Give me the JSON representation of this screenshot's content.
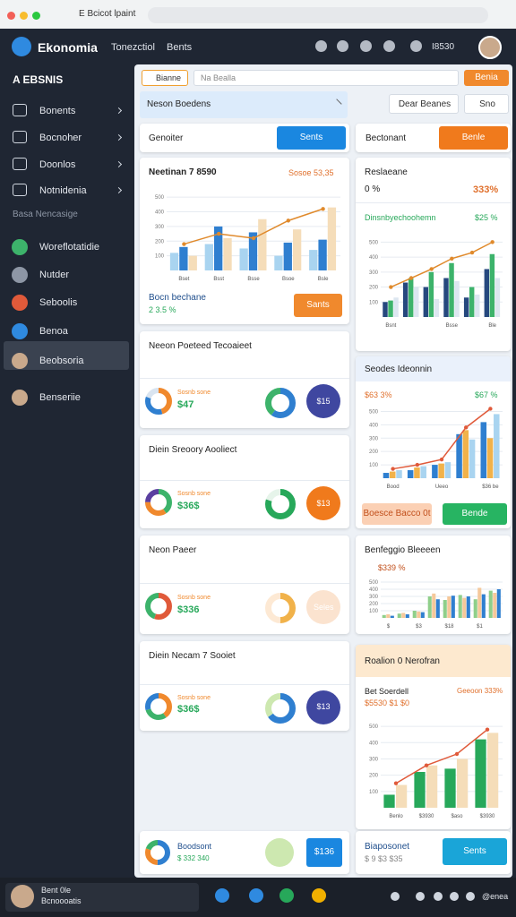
{
  "browser": {
    "tab_title": "E Bcicot lpaint"
  },
  "header": {
    "app_name": "Ekonomia",
    "nav": [
      "Tonezctiol",
      "Bents"
    ],
    "account": "I8530"
  },
  "sidebar": {
    "title": "A EBSNIS",
    "items": [
      "Bonents",
      "Bocnoher",
      "Doonlos",
      "Notnidenia"
    ],
    "section": "Basa Nencasige",
    "items2": [
      "Woreflotatidie",
      "Nutder",
      "Seboolis",
      "Benoa",
      "Beobsoria",
      "Benseriie"
    ]
  },
  "toolbar": {
    "filter": "Bianne",
    "search": "Na Bealla",
    "button": "Benia"
  },
  "notice": {
    "text": "Neson Boedens",
    "buttons": [
      "Dear Beanes",
      "Sno"
    ]
  },
  "search": {
    "placeholder": "Genoiter",
    "button": "Sents",
    "placeholder2": "Bectonant",
    "button2": "Benle"
  },
  "main_card": {
    "title": "Neetinan 7 8590",
    "figure": "Sosoe 53,35",
    "label": "Bocn bechane",
    "change": "2 3.5 %",
    "button": "Sants",
    "chart": {
      "type": "bar",
      "categories": [
        "Bset",
        "Bsst",
        "Bsse",
        "Bsoe",
        "Bsle"
      ],
      "ylim": [
        0,
        550
      ],
      "yticks": [
        100,
        200,
        300,
        400,
        500
      ],
      "series": [
        {
          "color": "#a9d4f0",
          "values": [
            120,
            180,
            150,
            100,
            140
          ]
        },
        {
          "color": "#2f7fd0",
          "values": [
            160,
            300,
            260,
            190,
            210
          ]
        },
        {
          "color": "#f5ddb9",
          "values": [
            100,
            220,
            350,
            280,
            430
          ]
        },
        {
          "color": "#e08a2c",
          "style": "line",
          "values": [
            180,
            250,
            220,
            340,
            420
          ]
        }
      ]
    }
  },
  "small_cards": [
    {
      "title": "Neeon Poeteed Tecoaieet",
      "value": "$47",
      "caption": "Sosnb sone",
      "badge": "$15",
      "shares": [
        45,
        35,
        20
      ],
      "colors": [
        "#f0892d",
        "#2f7fd0",
        "#d9e4f0"
      ],
      "shares2": [
        60,
        40
      ],
      "colors2": [
        "#2f7fd0",
        "#3db36b"
      ],
      "circle_color": "#3f47a0"
    },
    {
      "title": "Diein Sreoory Aooliect",
      "value": "$36$",
      "caption": "Sosnb sone",
      "badge": "$13",
      "shares": [
        40,
        35,
        25
      ],
      "colors": [
        "#3db36b",
        "#f0892d",
        "#5a3fa0"
      ],
      "shares2": [
        80,
        20
      ],
      "colors2": [
        "#27a85a",
        "#e6f4ea"
      ],
      "circle_color": "#f07a1c"
    },
    {
      "title": "Neon Paeer",
      "value": "$336",
      "caption": "Sosnb sone",
      "badge": "Seles",
      "shares": [
        55,
        45
      ],
      "colors": [
        "#e05a3a",
        "#3db36b"
      ],
      "shares2": [
        50,
        50
      ],
      "colors2": [
        "#f1b24a",
        "#fde9d4"
      ],
      "circle_color": "#fbe3cf"
    },
    {
      "title": "Diein Necam 7 Sooiet",
      "value": "$36$",
      "caption": "Sosnb sone",
      "badge": "$13",
      "shares": [
        40,
        30,
        30
      ],
      "colors": [
        "#f0892d",
        "#3db36b",
        "#2f7fd0"
      ],
      "shares2": [
        65,
        35
      ],
      "colors2": [
        "#2f7fd0",
        "#cde8b0"
      ],
      "circle_color": "#3f47a0"
    }
  ],
  "right_cards": [
    {
      "title": "Reslaeane",
      "left": "0 %",
      "right": "333%",
      "subtitle": "Dinsnbyechoohemn",
      "subvalue": "$25 %",
      "chart": {
        "type": "bar",
        "categories": [
          "Bsnt",
          null,
          null,
          "Bsse",
          null,
          "Ble"
        ],
        "ylim": [
          0,
          550
        ],
        "yticks": [
          100,
          200,
          300,
          400,
          500
        ],
        "series": [
          {
            "color": "#26487e",
            "values": [
              100,
              230,
              200,
              260,
              130,
              320
            ]
          },
          {
            "color": "#3db36b",
            "values": [
              110,
              260,
              300,
              360,
              200,
              420
            ]
          },
          {
            "color": "#dce6f0",
            "values": [
              130,
              200,
              120,
              240,
              150,
              260
            ]
          },
          {
            "color": "#e08a2c",
            "style": "line",
            "values": [
              200,
              260,
              320,
              390,
              430,
              500
            ]
          }
        ]
      }
    },
    {
      "title": "Seodes Ideonnin",
      "left": "$63 3%",
      "right": "$67 %",
      "buttons": [
        "Boesce Bacco 0t",
        "Bende"
      ],
      "chart": {
        "type": "bar",
        "categories": [
          "Bood",
          null,
          "Ueeo",
          null,
          "$36 be"
        ],
        "ylim": [
          0,
          550
        ],
        "yticks": [
          100,
          200,
          300,
          400,
          500
        ],
        "series": [
          {
            "color": "#2f7fd0",
            "values": [
              40,
              60,
              100,
              330,
              420
            ]
          },
          {
            "color": "#f1b24a",
            "values": [
              50,
              80,
              110,
              360,
              300
            ]
          },
          {
            "color": "#a9d4f0",
            "values": [
              60,
              90,
              120,
              290,
              480
            ]
          },
          {
            "color": "#e05a3a",
            "style": "line",
            "values": [
              70,
              100,
              140,
              380,
              520
            ]
          }
        ]
      }
    },
    {
      "title": "Benfeggio Bleeeen",
      "value": "$339 %",
      "chart": {
        "type": "bar",
        "categories": [
          "$",
          null,
          "$3",
          null,
          "$18",
          null,
          "$1",
          null
        ],
        "ylim": [
          0,
          550
        ],
        "yticks": [
          100,
          200,
          300,
          400,
          500
        ],
        "series": [
          {
            "color": "#8fcf8a",
            "values": [
              40,
              60,
              100,
              300,
              250,
              320,
              260,
              380
            ]
          },
          {
            "color": "#f5c89a",
            "values": [
              50,
              70,
              90,
              340,
              300,
              280,
              420,
              350
            ]
          },
          {
            "color": "#2f7fd0",
            "values": [
              30,
              50,
              80,
              260,
              310,
              300,
              330,
              400
            ]
          }
        ]
      }
    },
    {
      "title": "Roalion 0 Nerofran",
      "left": "Bet Soerdell",
      "right": "Geeoon 333%",
      "figure": "$5530 $1 $0",
      "chart": {
        "type": "bar",
        "categories": [
          "Benlo",
          "$3930",
          "$aso",
          "$3930"
        ],
        "ylim": [
          0,
          550
        ],
        "yticks": [
          100,
          200,
          300,
          400,
          500
        ],
        "series": [
          {
            "color": "#27a85a",
            "values": [
              80,
              220,
              240,
              420
            ]
          },
          {
            "color": "#f5ddb9",
            "values": [
              140,
              260,
              300,
              460
            ]
          },
          {
            "color": "#e05a3a",
            "style": "line",
            "values": [
              150,
              260,
              330,
              480
            ]
          }
        ]
      }
    }
  ],
  "bottom_left": {
    "title": "Boodsont",
    "sub": "$ 332 340",
    "badge": "$136",
    "shares": [
      50,
      30,
      20
    ],
    "colors": [
      "#2f7fd0",
      "#f0892d",
      "#3db36b"
    ]
  },
  "bottom_right": {
    "title": "Biaposonet",
    "sub": "$ 9 $3 $35",
    "button": "Sents"
  },
  "footer": {
    "user": "Bent 0le",
    "role": "Bcnoooatis",
    "clock": "@enea"
  }
}
